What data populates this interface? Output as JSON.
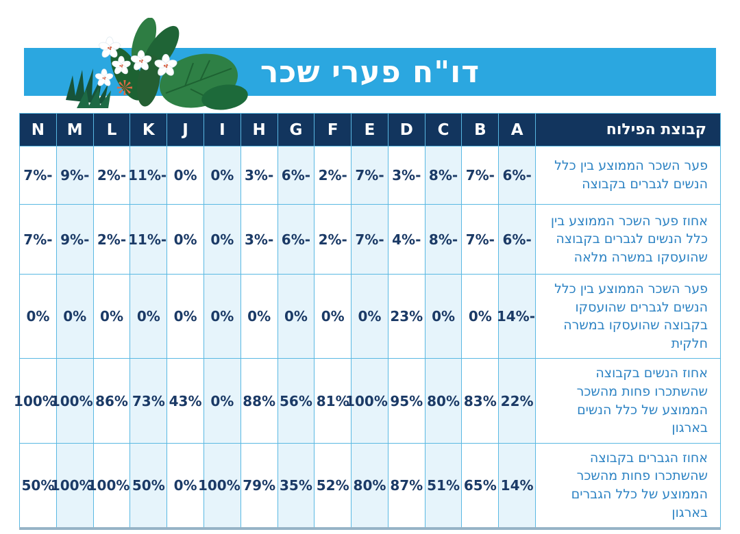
{
  "title": "דו\"ח פערי שכר",
  "table": {
    "label_header": "קבוצת הפילוח",
    "columns": [
      "A",
      "B",
      "C",
      "D",
      "E",
      "F",
      "G",
      "H",
      "I",
      "J",
      "K",
      "L",
      "M",
      "N"
    ],
    "rows": [
      {
        "label": "פער השכר הממוצע בין כלל הנשים לגברים בקבוצה",
        "values": [
          "-6%",
          "-7%",
          "-8%",
          "-3%",
          "-7%",
          "-2%",
          "-6%",
          "-3%",
          "0%",
          "0%",
          "-11%",
          "-2%",
          "-9%",
          "-7%"
        ]
      },
      {
        "label": "אחוז פער השכר הממוצע בין כלל הנשים לגברים בקבוצה שהועסקו במשרה מלאה",
        "values": [
          "-6%",
          "-7%",
          "-8%",
          "-4%",
          "-7%",
          "-2%",
          "-6%",
          "-3%",
          "0%",
          "0%",
          "-11%",
          "-2%",
          "-9%",
          "-7%"
        ]
      },
      {
        "label": "פער השכר הממוצע בין כלל הנשים לגברים שהועסקו בקבוצה שהועסקו במשרה חלקית",
        "values": [
          "-14%",
          "0%",
          "0%",
          "23%",
          "0%",
          "0%",
          "0%",
          "0%",
          "0%",
          "0%",
          "0%",
          "0%",
          "0%",
          "0%"
        ]
      },
      {
        "label": "אחוז הנשים בקבוצה שהשתכרו פחות מהשכר הממוצע של כלל הנשים בארגון",
        "values": [
          "22%",
          "83%",
          "80%",
          "95%",
          "100%",
          "81%",
          "56%",
          "88%",
          "0%",
          "43%",
          "73%",
          "86%",
          "100%",
          "100%"
        ]
      },
      {
        "label": "אחוז הגברים בקבוצה שהשתכרו פחות מהשכר הממוצע של כלל הגברים בארגון",
        "values": [
          "14%",
          "65%",
          "51%",
          "87%",
          "80%",
          "52%",
          "35%",
          "79%",
          "100%",
          "0%",
          "50%",
          "100%",
          "100%",
          "50%"
        ]
      }
    ]
  },
  "decoration": {
    "floral_illustration": "tropical-leaves-white-flowers-coral-burst"
  },
  "colors": {
    "banner_blue": "#2ba7e0",
    "header_navy": "#12355e",
    "value_navy": "#1b3a66",
    "label_blue": "#2b82c3",
    "stripe_blue": "#e6f4fb",
    "grid_blue": "#59b8e2",
    "bottom_border": "#96b3c6",
    "leaf_green_dark": "#17543a",
    "leaf_green": "#2e8045",
    "flower_white": "#ffffff",
    "flower_center_red": "#d85c3c",
    "burst_coral": "#e06a45"
  }
}
